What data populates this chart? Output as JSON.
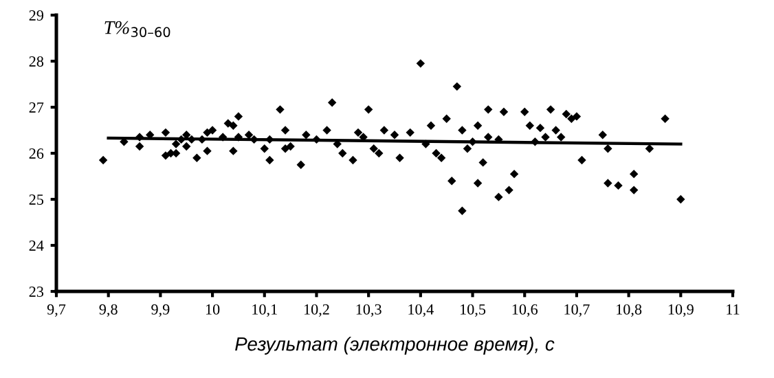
{
  "chart_data": {
    "type": "scatter",
    "xlabel": "Результат (электронное время), с",
    "ylabel": "T%$_{30–60}$",
    "xlim": [
      9.7,
      11
    ],
    "ylim": [
      23,
      29
    ],
    "xticks": [
      {
        "value": 9.7,
        "label": "9,7"
      },
      {
        "value": 9.8,
        "label": "9,8"
      },
      {
        "value": 9.9,
        "label": "9,9"
      },
      10,
      {
        "value": 10.1,
        "label": "10,1"
      },
      {
        "value": 10.2,
        "label": "10,2"
      },
      {
        "value": 10.3,
        "label": "10,3"
      },
      {
        "value": 10.4,
        "label": "10,4"
      },
      {
        "value": 10.5,
        "label": "10,5"
      },
      {
        "value": 10.6,
        "label": "10,6"
      },
      {
        "value": 10.7,
        "label": "10,7"
      },
      {
        "value": 10.8,
        "label": "10,8"
      },
      {
        "value": 10.9,
        "label": "10,9"
      },
      11
    ],
    "yticks": [
      23,
      24,
      25,
      26,
      27,
      28,
      29
    ],
    "grid": false,
    "legend": false,
    "marker": "diamond",
    "series": [
      {
        "color": "#000000",
        "x": [
          9.79,
          9.83,
          9.86,
          9.86,
          9.88,
          9.91,
          9.91,
          9.92,
          9.93,
          9.93,
          9.94,
          9.95,
          9.95,
          9.96,
          9.97,
          9.98,
          9.99,
          9.99,
          10.0,
          10.02,
          10.03,
          10.04,
          10.04,
          10.05,
          10.05,
          10.07,
          10.08,
          10.1,
          10.11,
          10.11,
          10.13,
          10.14,
          10.14,
          10.15,
          10.17,
          10.18,
          10.2,
          10.22,
          10.23,
          10.24,
          10.25,
          10.27,
          10.28,
          10.29,
          10.3,
          10.31,
          10.32,
          10.33,
          10.35,
          10.36,
          10.38,
          10.4,
          10.41,
          10.42,
          10.43,
          10.44,
          10.45,
          10.46,
          10.47,
          10.48,
          10.48,
          10.49,
          10.5,
          10.51,
          10.51,
          10.52,
          10.53,
          10.53,
          10.55,
          10.55,
          10.56,
          10.57,
          10.58,
          10.6,
          10.61,
          10.62,
          10.63,
          10.64,
          10.65,
          10.66,
          10.67,
          10.68,
          10.69,
          10.7,
          10.71,
          10.75,
          10.76,
          10.76,
          10.78,
          10.81,
          10.81,
          10.84,
          10.87,
          10.9
        ],
        "values": [
          25.85,
          26.25,
          26.35,
          26.15,
          26.4,
          26.45,
          25.95,
          26.0,
          26.2,
          26.0,
          26.3,
          26.4,
          26.15,
          26.3,
          25.9,
          26.3,
          26.45,
          26.05,
          26.5,
          26.35,
          26.65,
          26.6,
          26.05,
          26.8,
          26.35,
          26.4,
          26.3,
          26.1,
          26.3,
          25.85,
          26.95,
          26.1,
          26.5,
          26.15,
          25.75,
          26.4,
          26.3,
          26.5,
          27.1,
          26.2,
          26.0,
          25.85,
          26.45,
          26.35,
          26.95,
          26.1,
          26.0,
          26.5,
          26.4,
          25.9,
          26.45,
          27.95,
          26.2,
          26.6,
          26.0,
          25.9,
          26.75,
          25.4,
          27.45,
          26.5,
          24.75,
          26.1,
          26.25,
          26.6,
          25.35,
          25.8,
          26.35,
          26.95,
          25.05,
          26.3,
          26.9,
          25.2,
          25.55,
          26.9,
          26.6,
          26.25,
          26.55,
          26.35,
          26.95,
          26.5,
          26.35,
          26.85,
          26.75,
          26.8,
          25.85,
          26.4,
          25.35,
          26.1,
          25.3,
          25.2,
          25.55,
          26.1,
          26.75,
          25.0
        ]
      },
      {
        "type": "line",
        "color": "#000000",
        "marker": "none",
        "x": [
          9.8,
          10.9
        ],
        "values": [
          26.33,
          26.2
        ]
      }
    ]
  }
}
